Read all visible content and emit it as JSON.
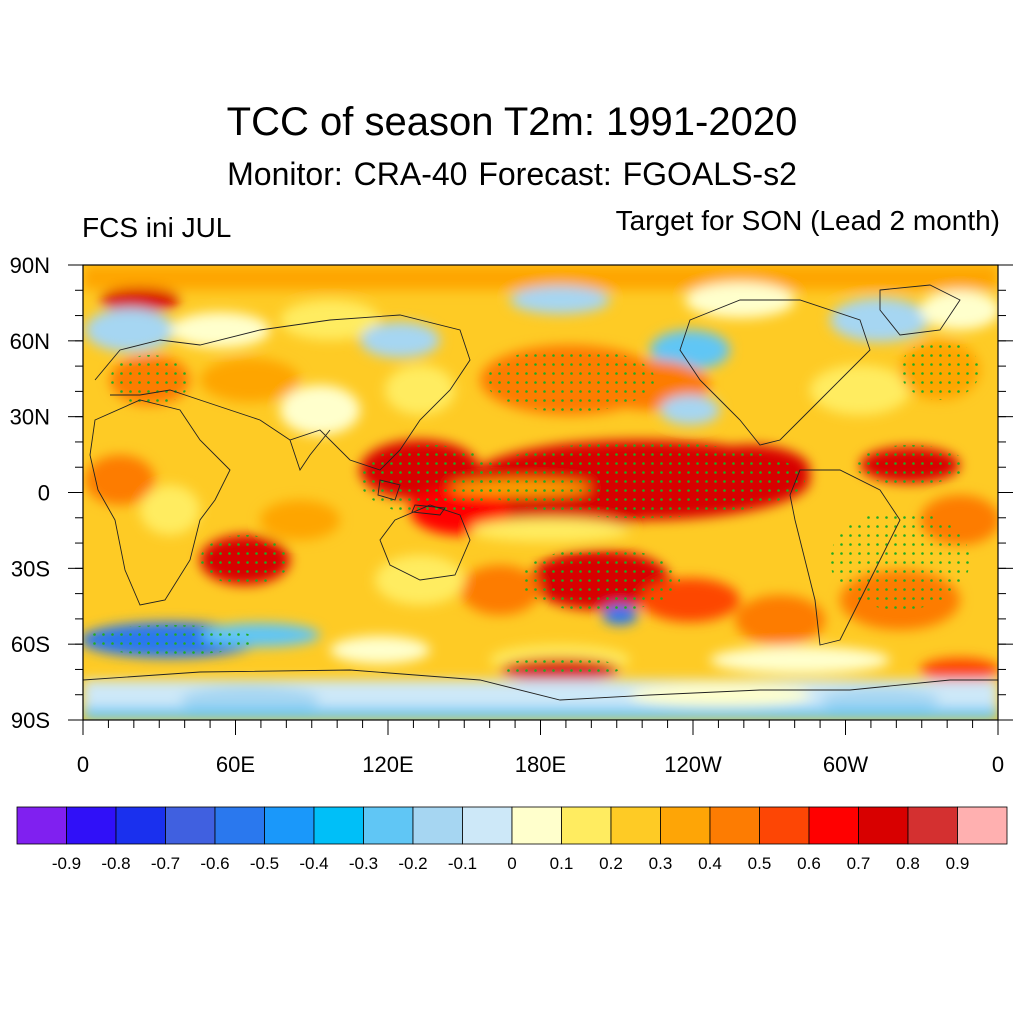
{
  "title": "TCC of season T2m: 1991-2020",
  "subtitle": "Monitor: CRA-40   Forecast: FGOALS-s2",
  "left_label": "FCS ini JUL",
  "right_label": "Target for SON (Lead 2 month)",
  "lat_labels": [
    "90N",
    "60N",
    "30N",
    "0",
    "30S",
    "60S",
    "90S"
  ],
  "lon_labels": [
    "0",
    "60E",
    "120E",
    "180E",
    "120W",
    "60W",
    "0"
  ],
  "colorbar": {
    "colors": [
      "#8020f0",
      "#3010f8",
      "#1a30ee",
      "#4060e0",
      "#2a78ee",
      "#1a98fa",
      "#00bff8",
      "#60c6f5",
      "#a6d6f2",
      "#cde8f8",
      "#ffffcc",
      "#ffec60",
      "#fecb25",
      "#fea506",
      "#fd7c02",
      "#fd4605",
      "#ff0000",
      "#d80000",
      "#d43030",
      "#ffb0b0"
    ],
    "labels": [
      "-0.9",
      "-0.8",
      "-0.7",
      "-0.6",
      "-0.5",
      "-0.4",
      "-0.3",
      "-0.2",
      "-0.1",
      "0",
      "0.1",
      "0.2",
      "0.3",
      "0.4",
      "0.5",
      "0.6",
      "0.7",
      "0.8",
      "0.9"
    ]
  }
}
